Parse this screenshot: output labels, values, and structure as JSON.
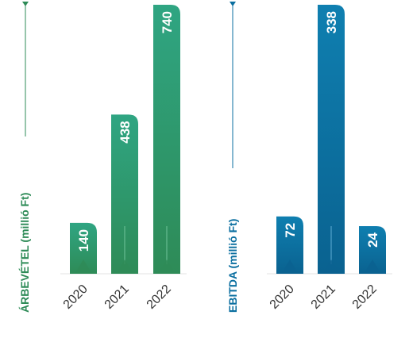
{
  "chart_data": [
    {
      "type": "bar",
      "title": "",
      "ylabel": "ÁRBEVÉTEL (millió Ft)",
      "categories": [
        "2020",
        "2021",
        "2022"
      ],
      "values": [
        140,
        438,
        740
      ],
      "value_labels": [
        "140",
        "438",
        "740"
      ],
      "ylim": [
        0,
        740
      ],
      "colors": {
        "accent": "#2e9a62",
        "top": "#2fa582",
        "bottom": "#2e8b57",
        "label": "#2e8b57",
        "stem": "#6bbf95"
      }
    },
    {
      "type": "bar",
      "title": "",
      "ylabel": "EBITDA (millió Ft)",
      "categories": [
        "2020",
        "2021",
        "2022"
      ],
      "values": [
        72,
        338,
        24
      ],
      "value_labels": [
        "72",
        "338",
        "24"
      ],
      "ylim": [
        0,
        338
      ],
      "colors": {
        "accent": "#0b6fa0",
        "top": "#0f7fb0",
        "bottom": "#0a6290",
        "label": "#0b6fa0",
        "stem": "#5aa8d0"
      }
    }
  ]
}
